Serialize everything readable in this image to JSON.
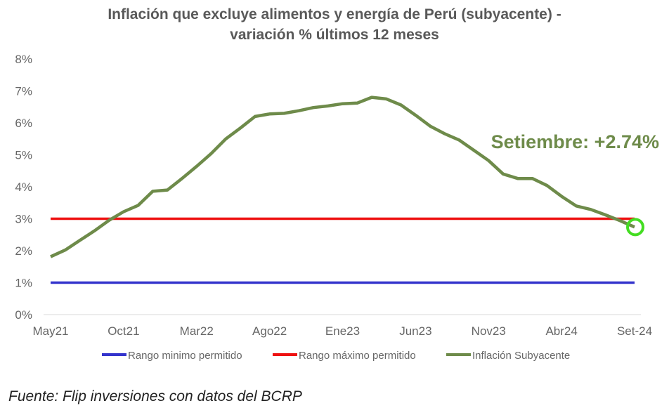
{
  "chart_data": {
    "type": "line",
    "title_line1": "Inflación que excluye alimentos y energía de Perú (subyacente) -",
    "title_line2": "variación % últimos 12 meses",
    "y_ticks": [
      "0%",
      "1%",
      "2%",
      "3%",
      "4%",
      "5%",
      "6%",
      "7%",
      "8%"
    ],
    "ylim": [
      0,
      8
    ],
    "x_labels": [
      "May21",
      "Oct21",
      "Mar22",
      "Ago22",
      "Ene23",
      "Jun23",
      "Nov23",
      "Abr24",
      "Set-24"
    ],
    "grid": false,
    "legend_position": "bottom",
    "series": [
      {
        "name": "Rango minimo permitido",
        "color": "#3333cc",
        "values": [
          1,
          1
        ]
      },
      {
        "name": "Rango máximo permitido",
        "color": "#ee1111",
        "values": [
          3,
          3
        ]
      },
      {
        "name": "Inflación Subyacente",
        "color": "#6e8b4a",
        "values": [
          1.81,
          2.02,
          2.32,
          2.62,
          2.95,
          3.22,
          3.42,
          3.86,
          3.9,
          4.26,
          4.64,
          5.04,
          5.5,
          5.84,
          6.2,
          6.28,
          6.3,
          6.38,
          6.48,
          6.53,
          6.6,
          6.62,
          6.8,
          6.75,
          6.56,
          6.24,
          5.9,
          5.66,
          5.46,
          5.14,
          4.82,
          4.4,
          4.26,
          4.26,
          4.04,
          3.7,
          3.4,
          3.29,
          3.12,
          2.94,
          2.74
        ]
      }
    ],
    "annotation": {
      "text": "Setiembre: +2.74%",
      "color": "#6e8b4a",
      "marker_color": "#44dd22"
    }
  },
  "footer": {
    "source": "Fuente: Flip inversiones con datos del BCRP"
  }
}
